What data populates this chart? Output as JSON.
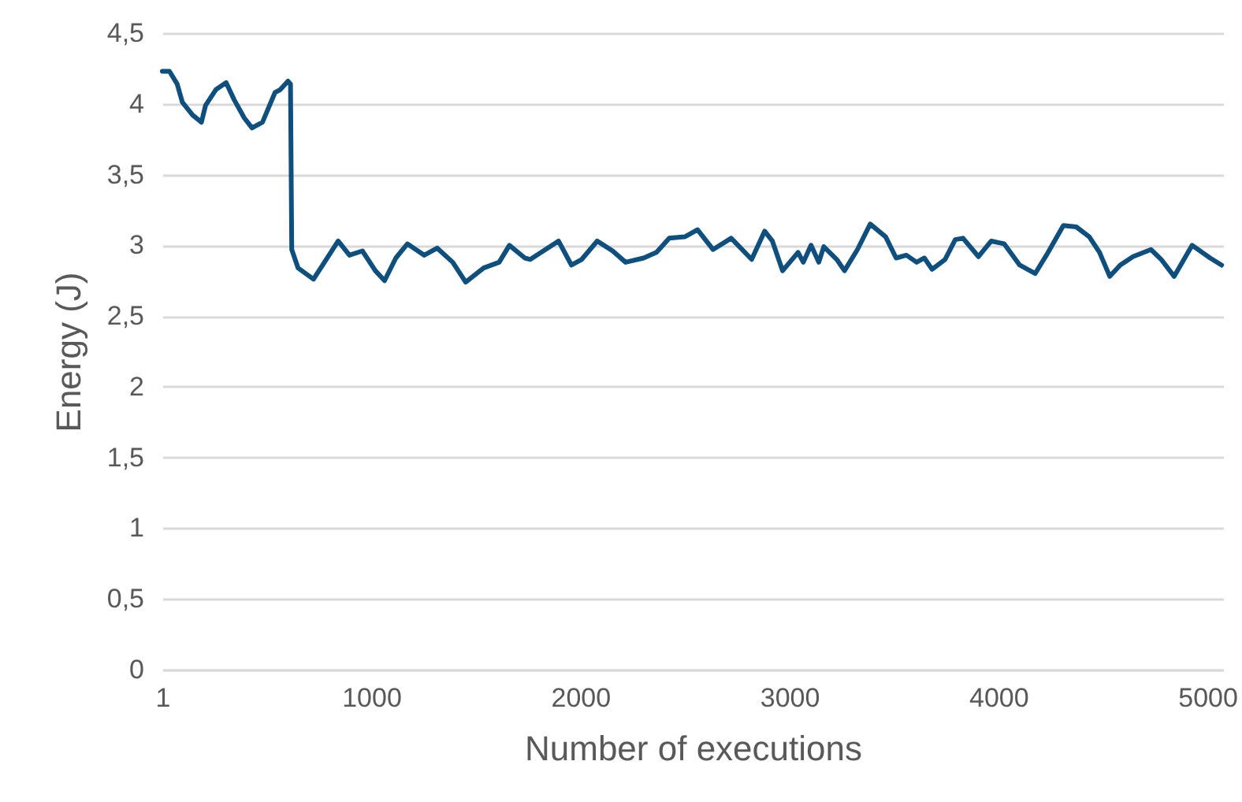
{
  "chart_data": {
    "type": "line",
    "xlabel": "Number of executions",
    "ylabel": "Energy (J)",
    "x": [
      1,
      35,
      72,
      97,
      146,
      188,
      208,
      257,
      306,
      344,
      393,
      430,
      480,
      540,
      565,
      602,
      614,
      620,
      650,
      724,
      785,
      842,
      896,
      958,
      1020,
      1064,
      1118,
      1173,
      1254,
      1316,
      1390,
      1452,
      1538,
      1612,
      1661,
      1735,
      1761,
      1896,
      1958,
      2007,
      2081,
      2155,
      2217,
      2303,
      2365,
      2426,
      2500,
      2561,
      2635,
      2722,
      2820,
      2882,
      2919,
      2968,
      3042,
      3067,
      3104,
      3141,
      3165,
      3227,
      3264,
      3326,
      3387,
      3461,
      3511,
      3560,
      3609,
      3646,
      3683,
      3745,
      3794,
      3831,
      3905,
      3966,
      4028,
      4102,
      4176,
      4238,
      4311,
      4373,
      4435,
      4484,
      4533,
      4583,
      4644,
      4730,
      4779,
      4841,
      4927,
      5013,
      5068
    ],
    "series": [
      {
        "color": "#0f4f7d",
        "values": [
          4.23,
          4.23,
          4.14,
          4.01,
          3.92,
          3.87,
          3.99,
          4.1,
          4.15,
          4.03,
          3.9,
          3.83,
          3.87,
          4.08,
          4.1,
          4.16,
          4.14,
          2.97,
          2.84,
          2.76,
          2.9,
          3.03,
          2.93,
          2.96,
          2.82,
          2.75,
          2.91,
          3.01,
          2.93,
          2.98,
          2.88,
          2.74,
          2.84,
          2.88,
          3.0,
          2.91,
          2.9,
          3.03,
          2.86,
          2.9,
          3.03,
          2.96,
          2.88,
          2.91,
          2.95,
          3.05,
          3.06,
          3.11,
          2.97,
          3.05,
          2.9,
          3.1,
          3.03,
          2.82,
          2.95,
          2.88,
          3.0,
          2.88,
          2.99,
          2.9,
          2.82,
          2.97,
          3.15,
          3.06,
          2.91,
          2.93,
          2.88,
          2.91,
          2.83,
          2.9,
          3.04,
          3.05,
          2.92,
          3.03,
          3.01,
          2.86,
          2.8,
          2.95,
          3.14,
          3.13,
          3.06,
          2.95,
          2.78,
          2.86,
          2.92,
          2.97,
          2.9,
          2.78,
          3.0,
          2.91,
          2.86
        ]
      }
    ],
    "xlim": [
      1,
      5075
    ],
    "xticks": [
      1,
      1000,
      2000,
      3000,
      4000,
      5000
    ],
    "ylim": [
      0,
      4.5
    ],
    "yticks": [
      0,
      {
        "value": 0.5,
        "label": "0,5"
      },
      1,
      {
        "value": 1.5,
        "label": "1,5"
      },
      2,
      {
        "value": 2.5,
        "label": "2,5"
      },
      3,
      {
        "value": 3.5,
        "label": "3,5"
      },
      4,
      {
        "value": 4.5,
        "label": "4,5"
      }
    ],
    "grid": "y",
    "line_style": "solid"
  }
}
